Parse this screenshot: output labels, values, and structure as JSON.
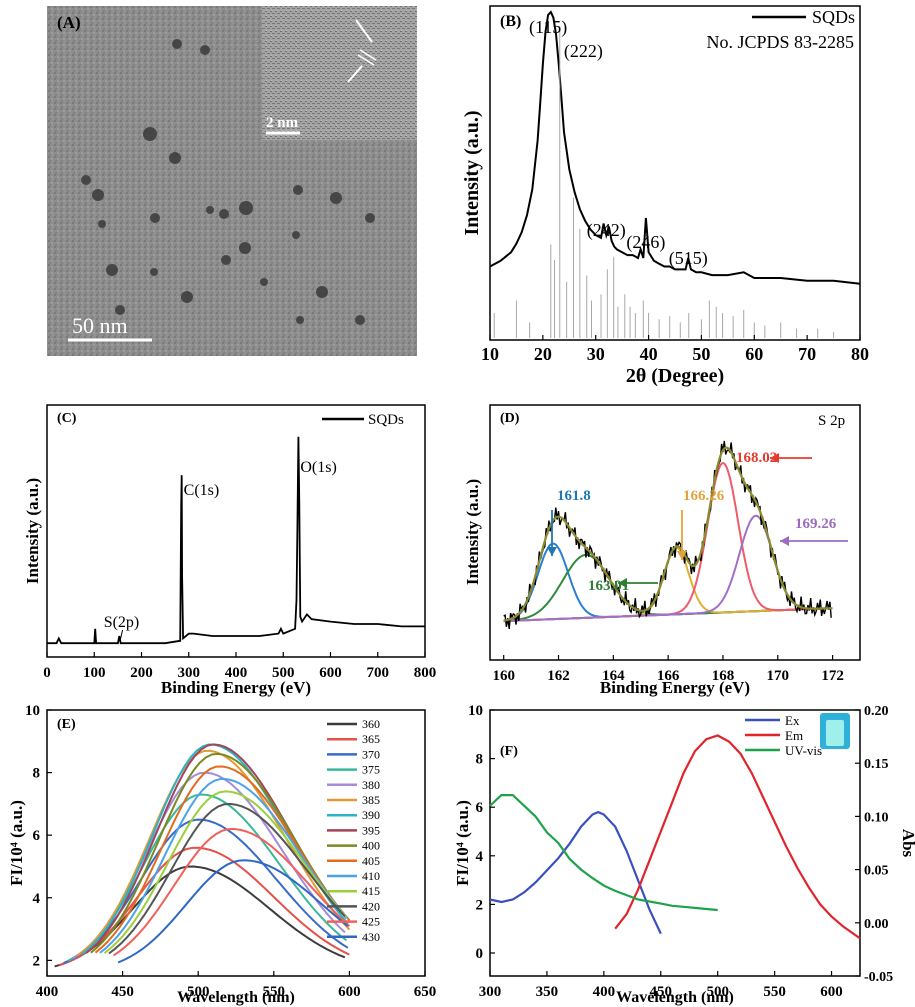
{
  "chart_data": [
    {
      "panel": "A",
      "type": "image",
      "label": "(A)",
      "scale_bar": "50 nm",
      "inset_scale_bar": "2 nm"
    },
    {
      "panel": "B",
      "type": "line",
      "label": "(B)",
      "xlabel": "2θ (Degree)",
      "ylabel": "Intensity (a.u.)",
      "xlim": [
        10,
        80
      ],
      "xticks": [
        10,
        20,
        30,
        40,
        50,
        60,
        70,
        80
      ],
      "legend": [
        "SQDs"
      ],
      "reference": "No. JCPDS 83-2285",
      "peak_labels": [
        {
          "text": "(115)",
          "x": 21
        },
        {
          "text": "(222)",
          "x": 23.5
        },
        {
          "text": "(242)",
          "x": 32
        },
        {
          "text": "(246)",
          "x": 39.5
        },
        {
          "text": "(515)",
          "x": 47.5
        }
      ],
      "series": [
        {
          "name": "SQDs",
          "x": [
            10,
            12,
            14,
            15,
            16,
            17,
            18,
            19,
            19.5,
            20,
            20.5,
            21,
            21.5,
            22,
            22.5,
            23,
            23.5,
            24,
            25,
            26,
            27,
            28,
            29,
            30,
            31,
            31.5,
            32,
            32.5,
            33,
            33.5,
            34,
            35,
            36,
            37,
            38,
            38.5,
            39,
            39.5,
            40,
            41,
            42,
            43,
            44,
            45,
            46,
            47,
            47.5,
            48,
            49,
            50,
            52,
            55,
            58,
            60,
            65,
            70,
            75,
            80
          ],
          "y": [
            0.11,
            0.13,
            0.16,
            0.19,
            0.23,
            0.29,
            0.38,
            0.55,
            0.68,
            0.82,
            0.93,
            0.99,
            1.0,
            0.98,
            0.92,
            0.82,
            0.7,
            0.58,
            0.45,
            0.37,
            0.31,
            0.27,
            0.24,
            0.22,
            0.21,
            0.26,
            0.22,
            0.25,
            0.2,
            0.18,
            0.17,
            0.16,
            0.15,
            0.15,
            0.14,
            0.17,
            0.14,
            0.28,
            0.16,
            0.13,
            0.12,
            0.11,
            0.11,
            0.1,
            0.1,
            0.1,
            0.14,
            0.1,
            0.09,
            0.09,
            0.08,
            0.08,
            0.09,
            0.07,
            0.07,
            0.06,
            0.06,
            0.05
          ]
        }
      ],
      "reference_lines": [
        {
          "x": 10.8,
          "h": 0.08
        },
        {
          "x": 15,
          "h": 0.12
        },
        {
          "x": 17.5,
          "h": 0.05
        },
        {
          "x": 21.5,
          "h": 0.3
        },
        {
          "x": 22.2,
          "h": 0.25
        },
        {
          "x": 23.2,
          "h": 1.0
        },
        {
          "x": 24.5,
          "h": 0.18
        },
        {
          "x": 25.8,
          "h": 0.45
        },
        {
          "x": 27,
          "h": 0.35
        },
        {
          "x": 28.3,
          "h": 0.2
        },
        {
          "x": 29.2,
          "h": 0.12
        },
        {
          "x": 31,
          "h": 0.14
        },
        {
          "x": 32.2,
          "h": 0.22
        },
        {
          "x": 33.4,
          "h": 0.26
        },
        {
          "x": 34.2,
          "h": 0.1
        },
        {
          "x": 35.5,
          "h": 0.14
        },
        {
          "x": 36.5,
          "h": 0.1
        },
        {
          "x": 37.5,
          "h": 0.08
        },
        {
          "x": 39,
          "h": 0.12
        },
        {
          "x": 40,
          "h": 0.08
        },
        {
          "x": 42,
          "h": 0.06
        },
        {
          "x": 44,
          "h": 0.07
        },
        {
          "x": 46,
          "h": 0.05
        },
        {
          "x": 47.6,
          "h": 0.08
        },
        {
          "x": 50,
          "h": 0.06
        },
        {
          "x": 51.5,
          "h": 0.12
        },
        {
          "x": 52.8,
          "h": 0.1
        },
        {
          "x": 54,
          "h": 0.08
        },
        {
          "x": 56,
          "h": 0.07
        },
        {
          "x": 58,
          "h": 0.09
        },
        {
          "x": 60,
          "h": 0.05
        },
        {
          "x": 62,
          "h": 0.04
        },
        {
          "x": 65,
          "h": 0.05
        },
        {
          "x": 68,
          "h": 0.03
        },
        {
          "x": 72,
          "h": 0.03
        },
        {
          "x": 75,
          "h": 0.02
        }
      ]
    },
    {
      "panel": "C",
      "type": "line",
      "label": "(C)",
      "xlabel": "Binding Energy (eV)",
      "ylabel": "Intensity (a.u.)",
      "xlim": [
        0,
        800
      ],
      "xticks": [
        0,
        100,
        200,
        300,
        400,
        500,
        600,
        700,
        800
      ],
      "legend": [
        "SQDs"
      ],
      "peak_labels": [
        {
          "text": "S(2p)",
          "x": 165
        },
        {
          "text": "C(1s)",
          "x": 285
        },
        {
          "text": "O(1s)",
          "x": 532
        }
      ],
      "series": [
        {
          "name": "SQDs",
          "x": [
            0,
            20,
            25,
            30,
            100,
            102,
            104,
            106,
            150,
            153,
            156,
            160,
            200,
            250,
            282,
            284,
            285,
            286,
            288,
            300,
            310,
            350,
            400,
            450,
            490,
            495,
            500,
            525,
            528,
            530,
            532,
            534,
            536,
            540,
            550,
            560,
            600,
            650,
            700,
            750,
            800
          ],
          "y": [
            0.02,
            0.02,
            0.04,
            0.02,
            0.02,
            0.08,
            0.02,
            0.02,
            0.02,
            0.05,
            0.02,
            0.02,
            0.02,
            0.02,
            0.03,
            0.6,
            0.72,
            0.3,
            0.04,
            0.06,
            0.06,
            0.05,
            0.05,
            0.05,
            0.06,
            0.08,
            0.06,
            0.08,
            0.2,
            0.5,
            0.88,
            0.6,
            0.13,
            0.11,
            0.14,
            0.12,
            0.11,
            0.1,
            0.1,
            0.09,
            0.09
          ]
        }
      ]
    },
    {
      "panel": "D",
      "type": "line",
      "label": "(D)",
      "title": "S 2p",
      "xlabel": "Binding Energy (eV)",
      "ylabel": "Intensity (a.u.)",
      "xlim": [
        159.5,
        173
      ],
      "xticks": [
        160,
        162,
        164,
        166,
        168,
        170,
        172
      ],
      "annotations": [
        {
          "text": "161.8",
          "x": 161.7,
          "color": "#1f77b4"
        },
        {
          "text": "163.01",
          "x": 163.0,
          "color": "#2e7d32"
        },
        {
          "text": "166.26",
          "x": 166.3,
          "color": "#e3a33b"
        },
        {
          "text": "168.02",
          "x": 168.0,
          "color": "#e8392e"
        },
        {
          "text": "169.26",
          "x": 169.2,
          "color": "#9b6bbf"
        }
      ],
      "components": [
        {
          "center": 161.8,
          "amp": 0.42,
          "width": 0.55,
          "color": "#2a7fd4"
        },
        {
          "center": 163.0,
          "amp": 0.35,
          "width": 0.85,
          "color": "#2e8b3c"
        },
        {
          "center": 166.3,
          "amp": 0.37,
          "width": 0.45,
          "color": "#e0b030"
        },
        {
          "center": 168.0,
          "amp": 0.83,
          "width": 0.55,
          "color": "#f05a6a"
        },
        {
          "center": 169.2,
          "amp": 0.53,
          "width": 0.6,
          "color": "#a070c8"
        }
      ],
      "baseline_color": "#30c0c8",
      "envelope_color": "#8a8a30"
    },
    {
      "panel": "E",
      "type": "line",
      "label": "(E)",
      "xlabel": "Wavelength (nm)",
      "ylabel": "FI/10⁴ (a.u.)",
      "xlim": [
        400,
        650
      ],
      "ylim": [
        1.5,
        10
      ],
      "xticks": [
        400,
        450,
        500,
        550,
        600,
        650
      ],
      "yticks": [
        2,
        4,
        6,
        8,
        10
      ],
      "series": [
        {
          "name": "360",
          "peak_x": 495,
          "peak_y": 5.0,
          "color": "#3c3c3c"
        },
        {
          "name": "365",
          "peak_x": 498,
          "peak_y": 5.6,
          "color": "#e8504a"
        },
        {
          "name": "370",
          "peak_x": 500,
          "peak_y": 6.5,
          "color": "#3a6bc8"
        },
        {
          "name": "375",
          "peak_x": 502,
          "peak_y": 7.3,
          "color": "#3ab89a"
        },
        {
          "name": "380",
          "peak_x": 504,
          "peak_y": 8.0,
          "color": "#a58bd8"
        },
        {
          "name": "385",
          "peak_x": 506,
          "peak_y": 8.7,
          "color": "#e39a34"
        },
        {
          "name": "390",
          "peak_x": 508,
          "peak_y": 8.9,
          "color": "#2bb3c7"
        },
        {
          "name": "395",
          "peak_x": 510,
          "peak_y": 8.9,
          "color": "#a0455a"
        },
        {
          "name": "400",
          "peak_x": 512,
          "peak_y": 8.6,
          "color": "#7a8a20"
        },
        {
          "name": "405",
          "peak_x": 514,
          "peak_y": 8.2,
          "color": "#e36b20"
        },
        {
          "name": "410",
          "peak_x": 516,
          "peak_y": 7.8,
          "color": "#4aa3e8"
        },
        {
          "name": "415",
          "peak_x": 518,
          "peak_y": 7.4,
          "color": "#9ad03a"
        },
        {
          "name": "420",
          "peak_x": 520,
          "peak_y": 7.0,
          "color": "#555555"
        },
        {
          "name": "425",
          "peak_x": 522,
          "peak_y": 6.2,
          "color": "#f2605a"
        },
        {
          "name": "430",
          "peak_x": 530,
          "peak_y": 5.2,
          "color": "#2f67c8"
        }
      ]
    },
    {
      "panel": "F",
      "type": "line",
      "label": "(F)",
      "xlabel": "Wavelength (nm)",
      "ylabel": "FI/10⁴ (a.u.)",
      "y2label": "Abs",
      "xlim": [
        300,
        625
      ],
      "ylim": [
        0,
        10
      ],
      "y2lim": [
        -0.05,
        0.2
      ],
      "xticks": [
        300,
        350,
        400,
        450,
        500,
        550,
        600
      ],
      "yticks": [
        0,
        2,
        4,
        6,
        8,
        10
      ],
      "y2ticks": [
        "-0.05",
        "0.00",
        "0.05",
        "0.10",
        "0.15",
        "0.20"
      ],
      "series": [
        {
          "name": "Ex",
          "color": "#3a4fc0",
          "x": [
            300,
            310,
            320,
            330,
            340,
            350,
            360,
            370,
            380,
            390,
            395,
            400,
            410,
            420,
            430,
            440,
            450
          ],
          "y": [
            2.2,
            2.1,
            2.2,
            2.5,
            2.9,
            3.4,
            3.9,
            4.5,
            5.2,
            5.7,
            5.8,
            5.7,
            5.2,
            4.2,
            3.0,
            1.8,
            0.8
          ]
        },
        {
          "name": "Em",
          "color": "#e0242e",
          "x": [
            410,
            420,
            430,
            440,
            450,
            460,
            470,
            480,
            490,
            500,
            510,
            520,
            530,
            540,
            550,
            560,
            570,
            580,
            590,
            600,
            610,
            625
          ],
          "y": [
            1.0,
            1.6,
            2.6,
            3.8,
            5.0,
            6.2,
            7.4,
            8.3,
            8.8,
            8.95,
            8.7,
            8.2,
            7.4,
            6.4,
            5.4,
            4.4,
            3.5,
            2.7,
            2.0,
            1.5,
            1.1,
            0.6
          ]
        },
        {
          "name": "UV-vis",
          "color": "#1fa34a",
          "x": [
            300,
            310,
            320,
            330,
            340,
            350,
            360,
            370,
            380,
            390,
            400,
            410,
            420,
            430,
            440,
            450,
            460,
            470,
            480,
            490,
            500
          ],
          "y2": [
            0.11,
            0.12,
            0.12,
            0.11,
            0.1,
            0.085,
            0.075,
            0.06,
            0.05,
            0.042,
            0.035,
            0.03,
            0.026,
            0.022,
            0.02,
            0.018,
            0.016,
            0.015,
            0.014,
            0.013,
            0.012
          ]
        }
      ]
    }
  ]
}
